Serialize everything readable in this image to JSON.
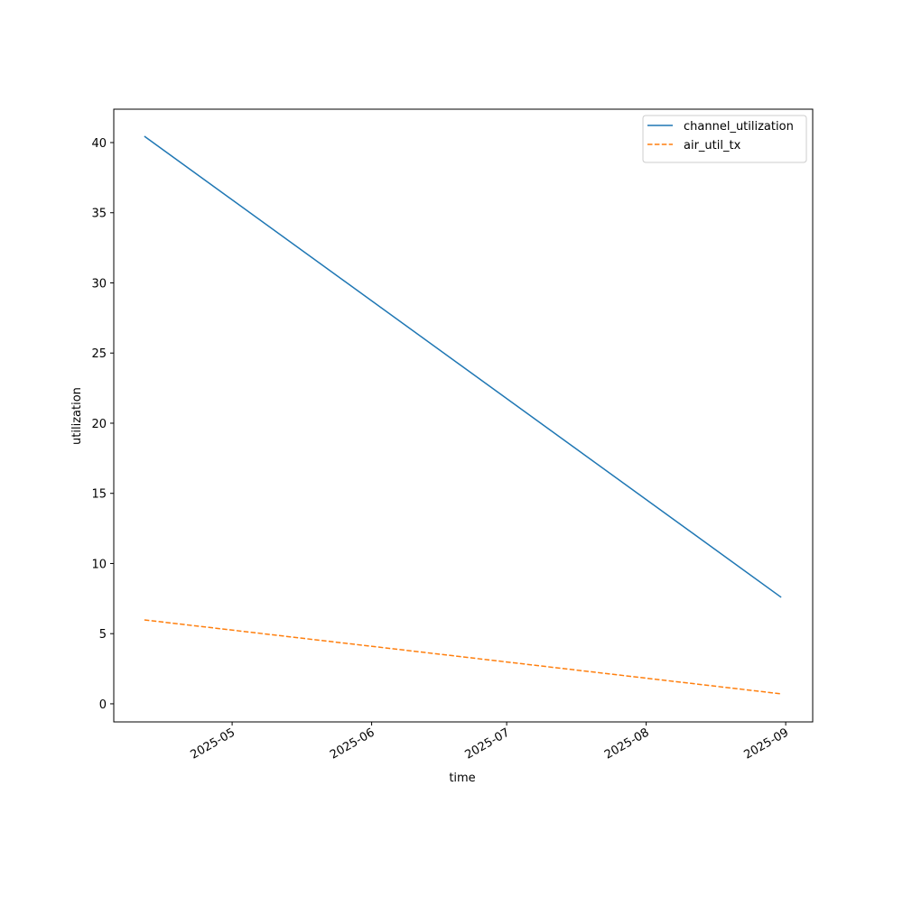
{
  "chart_data": {
    "type": "line",
    "x_label": "time",
    "y_label": "utilization",
    "x": [
      20189.5,
      20331
    ],
    "series": [
      {
        "name": "channel_utilization",
        "color": "#1f77b4",
        "dash": "solid",
        "values": [
          40.45,
          7.59
        ]
      },
      {
        "name": "air_util_tx",
        "color": "#ff7f0e",
        "dash": "dashed",
        "values": [
          5.98,
          0.71
        ]
      }
    ],
    "xlim": [
      20182.7,
      20338.0
    ],
    "xticks": [
      {
        "value": 20209,
        "label": "2025-05"
      },
      {
        "value": 20240,
        "label": "2025-06"
      },
      {
        "value": 20270,
        "label": "2025-07"
      },
      {
        "value": 20301,
        "label": "2025-08"
      },
      {
        "value": 20332,
        "label": "2025-09"
      }
    ],
    "ylim": [
      -1.29,
      42.38
    ],
    "yticks": [
      0,
      5,
      10,
      15,
      20,
      25,
      30,
      35,
      40
    ],
    "grid": false,
    "legend": "upper right"
  }
}
